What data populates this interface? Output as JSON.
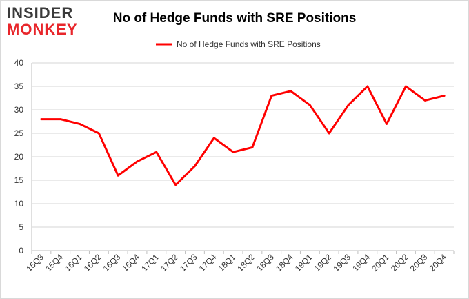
{
  "logo": {
    "line1": "INSIDER",
    "line2": "MONKEY"
  },
  "chart_data": {
    "type": "line",
    "title": "No of Hedge Funds with SRE Positions",
    "xlabel": "",
    "ylabel": "",
    "ylim": [
      0,
      40
    ],
    "yticks": [
      0,
      5,
      10,
      15,
      20,
      25,
      30,
      35,
      40
    ],
    "grid": true,
    "legend_position": "top",
    "categories": [
      "15Q3",
      "15Q4",
      "16Q1",
      "16Q2",
      "16Q3",
      "16Q4",
      "17Q1",
      "17Q2",
      "17Q3",
      "17Q4",
      "18Q1",
      "18Q2",
      "18Q3",
      "18Q4",
      "19Q1",
      "19Q2",
      "19Q3",
      "19Q4",
      "20Q1",
      "20Q2",
      "20Q3",
      "20Q4"
    ],
    "series": [
      {
        "name": "No of Hedge Funds with SRE Positions",
        "color": "#ff0000",
        "values": [
          28,
          28,
          27,
          25,
          16,
          19,
          21,
          14,
          18,
          24,
          21,
          22,
          33,
          34,
          31,
          25,
          31,
          35,
          27,
          35,
          32,
          33
        ]
      }
    ]
  }
}
